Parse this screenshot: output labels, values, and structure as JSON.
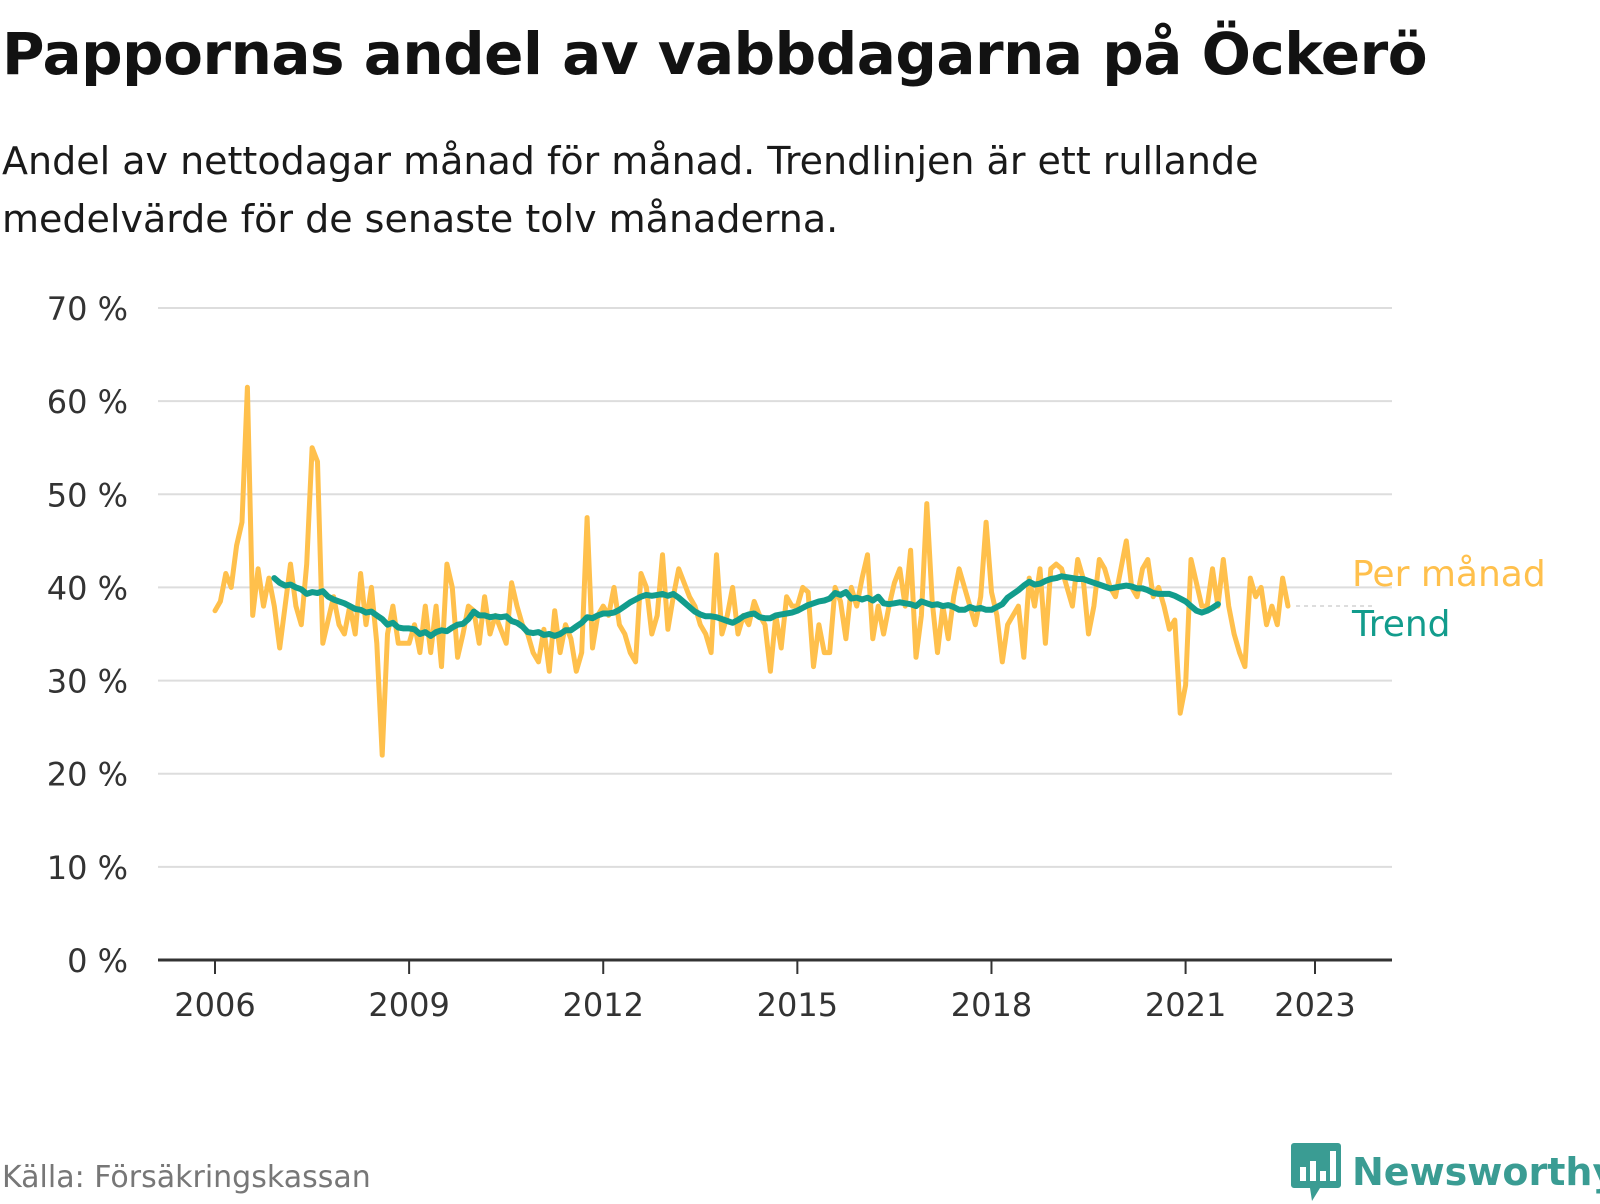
{
  "title": "Pappornas andel av vabbdagarna på Öckerö",
  "subtitle": "Andel av nettodagar månad för månad. Trendlinjen är ett rullande medelvärde för de senaste tolv månaderna.",
  "source": "Källa: Försäkringskassan",
  "brand": "Newsworthy",
  "colors": {
    "monthly": "#FFC04C",
    "trend": "#129C8C",
    "grid": "#dddddd",
    "axis": "#333333",
    "brand": "#3a9c93"
  },
  "chart_data": {
    "type": "line",
    "title": "Pappornas andel av vabbdagarna på Öckerö",
    "ylim": [
      0,
      70
    ],
    "yticks": [
      0,
      10,
      20,
      30,
      40,
      50,
      60,
      70
    ],
    "ytick_labels": [
      "0 %",
      "10 %",
      "20 %",
      "30 %",
      "40 %",
      "50 %",
      "60 %",
      "70 %"
    ],
    "xticks": [
      2006,
      2009,
      2012,
      2015,
      2018,
      2021,
      2023
    ],
    "xtick_labels": [
      "2006",
      "2009",
      "2012",
      "2015",
      "2018",
      "2021",
      "2023"
    ],
    "grid": true,
    "legend": "direct labels at right end of lines",
    "series": [
      {
        "name": "Per månad",
        "start": "2006-01",
        "frequency": "monthly",
        "values": [
          37.5,
          38.5,
          41.5,
          40,
          44.5,
          47,
          61.5,
          37,
          42,
          38,
          41,
          38,
          33.5,
          38,
          42.5,
          38,
          36,
          42.5,
          55,
          53.5,
          34,
          36.5,
          39,
          36,
          35,
          38,
          35,
          41.5,
          36,
          40,
          34,
          22,
          35,
          38,
          34,
          34,
          34,
          36,
          33,
          38,
          33,
          38,
          31.5,
          42.5,
          40,
          32.5,
          35,
          38,
          37.5,
          34,
          39,
          35,
          37,
          35.5,
          34,
          40.5,
          38,
          36,
          35,
          33,
          32,
          35.5,
          31,
          37.5,
          33,
          36,
          34.5,
          31,
          33,
          47.5,
          33.5,
          37,
          38,
          37,
          40,
          36,
          35,
          33,
          32,
          41.5,
          40,
          35,
          37,
          43.5,
          35.5,
          39,
          42,
          40.5,
          39,
          38,
          36,
          35,
          33,
          43.5,
          35,
          37,
          40,
          35,
          37,
          36,
          38.5,
          37,
          36,
          31,
          37,
          33.5,
          39,
          38,
          38,
          40,
          39.5,
          31.5,
          36,
          33,
          33,
          40,
          38.5,
          34.5,
          40,
          38,
          41,
          43.5,
          34.5,
          38,
          35,
          38,
          40.5,
          42,
          38,
          44,
          32.5,
          37,
          49,
          38.5,
          33,
          38,
          34.5,
          39,
          42,
          40,
          38,
          36,
          39,
          47,
          39.5,
          37,
          32,
          36,
          37,
          38,
          32.5,
          41,
          38,
          42,
          34,
          42,
          42.5,
          42,
          40,
          38,
          43,
          41,
          35,
          38,
          43,
          42,
          40,
          39,
          42,
          45,
          40,
          39,
          42,
          43,
          39,
          40,
          38,
          35.5,
          36.5,
          26.5,
          29.5,
          43,
          40.5,
          38,
          38,
          42,
          38,
          43,
          38,
          35,
          33,
          31.5,
          41,
          39,
          40,
          36,
          38,
          36,
          41,
          38
        ]
      },
      {
        "name": "Trend",
        "start": "2006-12",
        "frequency": "monthly",
        "values": [
          41,
          40.5,
          40.2,
          40.3,
          40,
          39.8,
          39.3,
          39.5,
          39.4,
          39.6,
          39,
          38.7,
          38.5,
          38.3,
          38,
          37.7,
          37.6,
          37.3,
          37.4,
          37,
          36.6,
          36,
          36.2,
          35.7,
          35.6,
          35.6,
          35.5,
          35,
          35.2,
          34.8,
          35.2,
          35.4,
          35.3,
          35.7,
          36,
          36.1,
          36.6,
          37.4,
          37,
          37,
          36.8,
          36.9,
          36.8,
          36.9,
          36.4,
          36.2,
          35.8,
          35.2,
          35.1,
          35.2,
          34.9,
          35,
          34.8,
          35,
          35.4,
          35.4,
          35.8,
          36.2,
          36.8,
          36.7,
          37,
          37.2,
          37.2,
          37.3,
          37.6,
          38,
          38.4,
          38.7,
          39,
          39.2,
          39.1,
          39.2,
          39.3,
          39.1,
          39.3,
          38.9,
          38.4,
          37.9,
          37.4,
          37.1,
          36.9,
          36.9,
          36.8,
          36.6,
          36.4,
          36.2,
          36.5,
          36.9,
          37.1,
          37.2,
          36.8,
          36.7,
          36.7,
          37,
          37.1,
          37.2,
          37.3,
          37.5,
          37.8,
          38.1,
          38.3,
          38.5,
          38.6,
          38.8,
          39.4,
          39.2,
          39.5,
          38.8,
          38.9,
          38.7,
          38.9,
          38.6,
          39,
          38.3,
          38.2,
          38.3,
          38.4,
          38.3,
          38.2,
          38,
          38.5,
          38.3,
          38.1,
          38.2,
          38,
          38.1,
          37.9,
          37.6,
          37.6,
          37.9,
          37.7,
          37.8,
          37.6,
          37.6,
          37.9,
          38.2,
          38.9,
          39.3,
          39.7,
          40.2,
          40.6,
          40.3,
          40.4,
          40.7,
          40.9,
          41,
          41.2,
          41.1,
          41,
          40.9,
          40.9,
          40.7,
          40.5,
          40.3,
          40.1,
          39.9,
          40,
          40.1,
          40.2,
          40.1,
          39.9,
          39.9,
          39.7,
          39.4,
          39.3,
          39.3,
          39.3,
          39.1,
          38.8,
          38.5,
          38,
          37.5,
          37.3,
          37.5,
          37.8,
          38.2
        ]
      }
    ]
  }
}
